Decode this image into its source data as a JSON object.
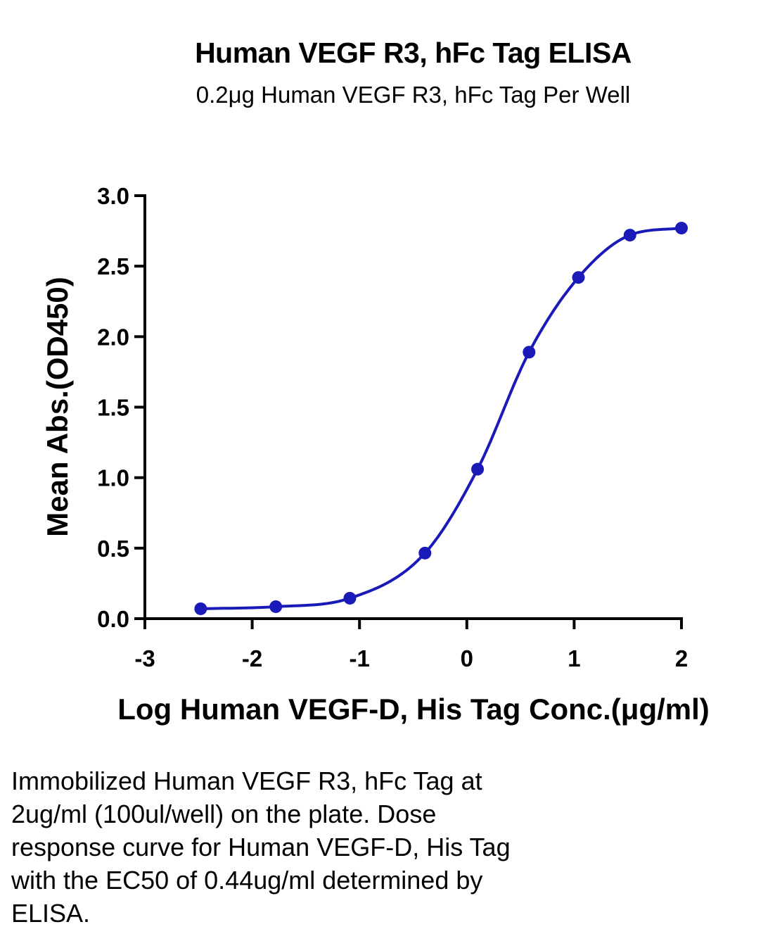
{
  "chart_data": {
    "type": "scatter",
    "title": "Human VEGF R3, hFc Tag ELISA",
    "subtitle": "0.2μg Human VEGF R3, hFc Tag Per Well",
    "xlabel": "Log Human VEGF-D, His Tag Conc.(μg/ml)",
    "ylabel": "Mean Abs.(OD450)",
    "xlim": [
      -3,
      2
    ],
    "ylim": [
      0,
      3
    ],
    "x_ticks": [
      "-3",
      "-2",
      "-1",
      "0",
      "1",
      "2"
    ],
    "y_ticks": [
      "0.0",
      "0.5",
      "1.0",
      "1.5",
      "2.0",
      "2.5",
      "3.0"
    ],
    "series": [
      {
        "x": [
          -2.48,
          -1.78,
          -1.09,
          -0.39,
          0.1,
          0.58,
          1.04,
          1.52,
          2.0
        ],
        "y": [
          0.07,
          0.085,
          0.145,
          0.465,
          1.06,
          1.89,
          2.42,
          2.72,
          2.77
        ],
        "fit": "four-parameter logistic"
      }
    ],
    "grid": false,
    "color": "#1a1ab8"
  },
  "caption": {
    "lines": [
      "Immobilized Human VEGF R3, hFc Tag at",
      "2ug/ml (100ul/well) on the plate. Dose",
      "response curve for Human VEGF-D, His Tag",
      "with the EC50 of 0.44ug/ml determined by",
      "ELISA."
    ]
  }
}
